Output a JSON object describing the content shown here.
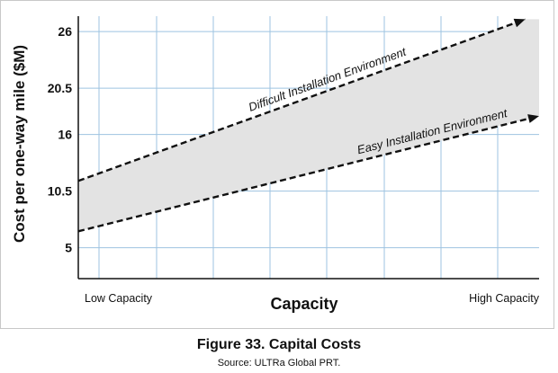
{
  "chart_data": {
    "type": "area",
    "ylabel": "Cost per one-way mile ($M)",
    "xlabel": "Capacity",
    "x_endpoint_labels": [
      "Low Capacity",
      "High Capacity"
    ],
    "ylim": [
      2,
      27.5
    ],
    "xlim": [
      0,
      1
    ],
    "yticks": [
      5,
      10.5,
      16,
      20.5,
      26
    ],
    "grid": true,
    "series": [
      {
        "name": "Difficult Installation Environment",
        "x": [
          0,
          0.97
        ],
        "values": [
          11.5,
          27.2
        ]
      },
      {
        "name": "Easy Installation Environment",
        "x": [
          0,
          1
        ],
        "values": [
          6.6,
          17.8
        ]
      }
    ],
    "shaded_region": "between series"
  },
  "caption": "Figure 33. Capital Costs",
  "source": "Source: ULTRa Global PRT."
}
